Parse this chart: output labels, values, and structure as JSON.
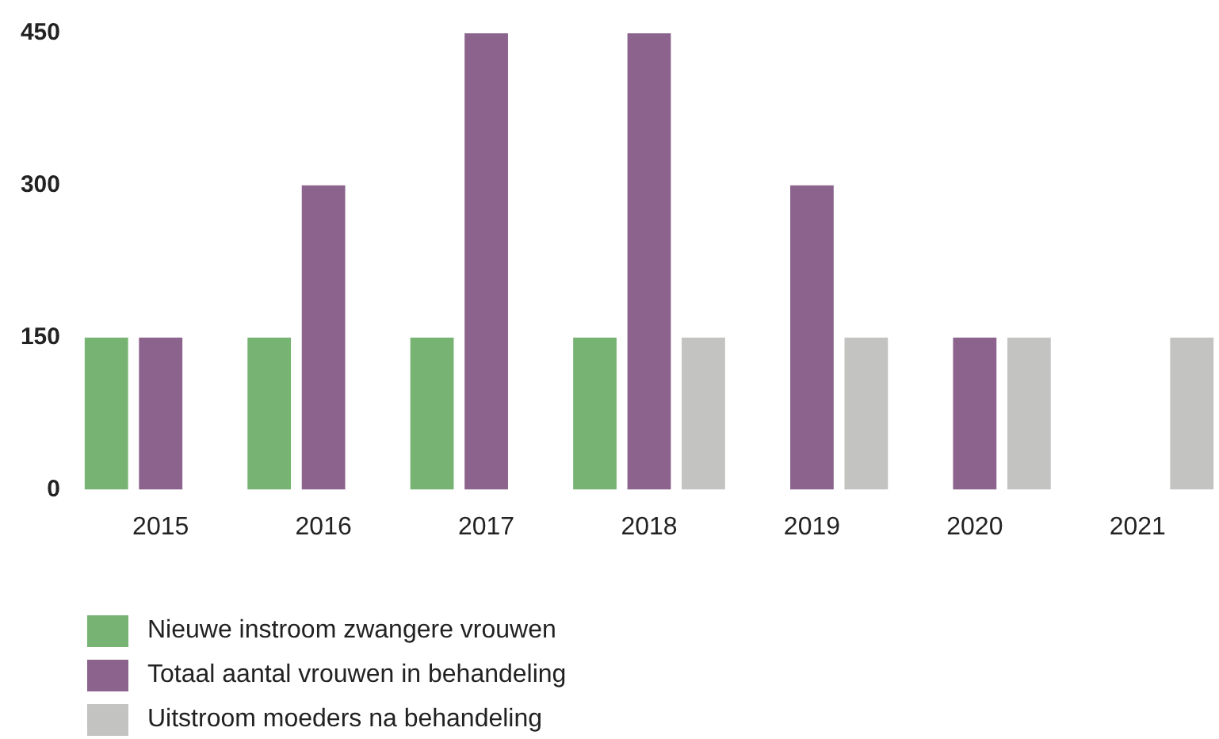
{
  "chart_data": {
    "type": "bar",
    "categories": [
      "2015",
      "2016",
      "2017",
      "2018",
      "2019",
      "2020",
      "2021"
    ],
    "series": [
      {
        "name": "Nieuwe instroom zwangere vrouwen",
        "color": "#77b473",
        "values": [
          150,
          150,
          150,
          150,
          null,
          null,
          null
        ]
      },
      {
        "name": "Totaal aantal vrouwen in behandeling",
        "color": "#8b638c",
        "values": [
          150,
          300,
          450,
          450,
          300,
          150,
          null
        ]
      },
      {
        "name": "Uitstroom moeders na behandeling",
        "color": "#c3c3c1",
        "values": [
          null,
          null,
          null,
          150,
          150,
          150,
          150
        ]
      }
    ],
    "ylim": [
      0,
      450
    ],
    "yticks": [
      0,
      150,
      300,
      450
    ],
    "grid": false,
    "legend": "bottom"
  }
}
